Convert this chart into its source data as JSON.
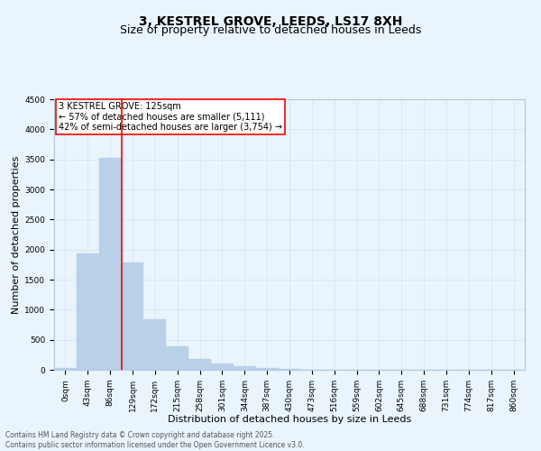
{
  "title_line1": "3, KESTREL GROVE, LEEDS, LS17 8XH",
  "title_line2": "Size of property relative to detached houses in Leeds",
  "xlabel": "Distribution of detached houses by size in Leeds",
  "ylabel": "Number of detached properties",
  "bar_categories": [
    "0sqm",
    "43sqm",
    "86sqm",
    "129sqm",
    "172sqm",
    "215sqm",
    "258sqm",
    "301sqm",
    "344sqm",
    "387sqm",
    "430sqm",
    "473sqm",
    "516sqm",
    "559sqm",
    "602sqm",
    "645sqm",
    "688sqm",
    "731sqm",
    "774sqm",
    "817sqm",
    "860sqm"
  ],
  "bar_values": [
    30,
    1930,
    3520,
    1780,
    840,
    390,
    175,
    100,
    60,
    35,
    10,
    5,
    2,
    0,
    0,
    0,
    0,
    0,
    0,
    0,
    0
  ],
  "bar_color": "#b8d0e8",
  "bar_edge_color": "#b8d0e8",
  "vline_color": "red",
  "vline_x_index": 2.5,
  "ylim": [
    0,
    4500
  ],
  "yticks": [
    0,
    500,
    1000,
    1500,
    2000,
    2500,
    3000,
    3500,
    4000,
    4500
  ],
  "annotation_text": "3 KESTREL GROVE: 125sqm\n← 57% of detached houses are smaller (5,111)\n42% of semi-detached houses are larger (3,754) →",
  "annotation_box_facecolor": "#ffffff",
  "annotation_box_edgecolor": "red",
  "grid_color": "#d4e6f5",
  "background_color": "#eaf4fc",
  "footer_line1": "Contains HM Land Registry data © Crown copyright and database right 2025.",
  "footer_line2": "Contains public sector information licensed under the Open Government Licence v3.0.",
  "title1_fontsize": 10,
  "title2_fontsize": 9,
  "xlabel_fontsize": 8,
  "ylabel_fontsize": 8,
  "tick_fontsize": 6.5,
  "annotation_fontsize": 7,
  "footer_fontsize": 5.5
}
